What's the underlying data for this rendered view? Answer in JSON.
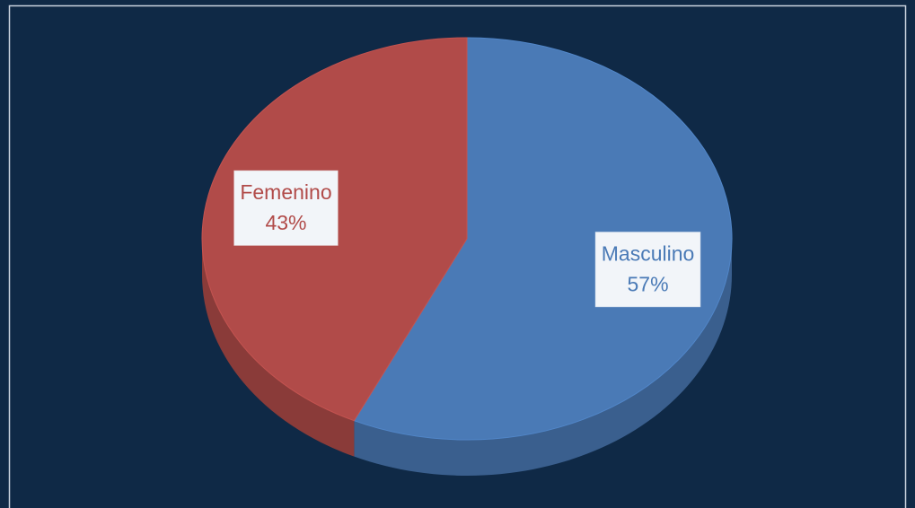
{
  "chart_data": {
    "type": "pie",
    "categories": [
      "Masculino",
      "Femenino"
    ],
    "values": [
      57,
      43
    ],
    "value_labels": [
      "57%",
      "43%"
    ],
    "colors": [
      "#4a7ab6",
      "#b14b49"
    ]
  }
}
